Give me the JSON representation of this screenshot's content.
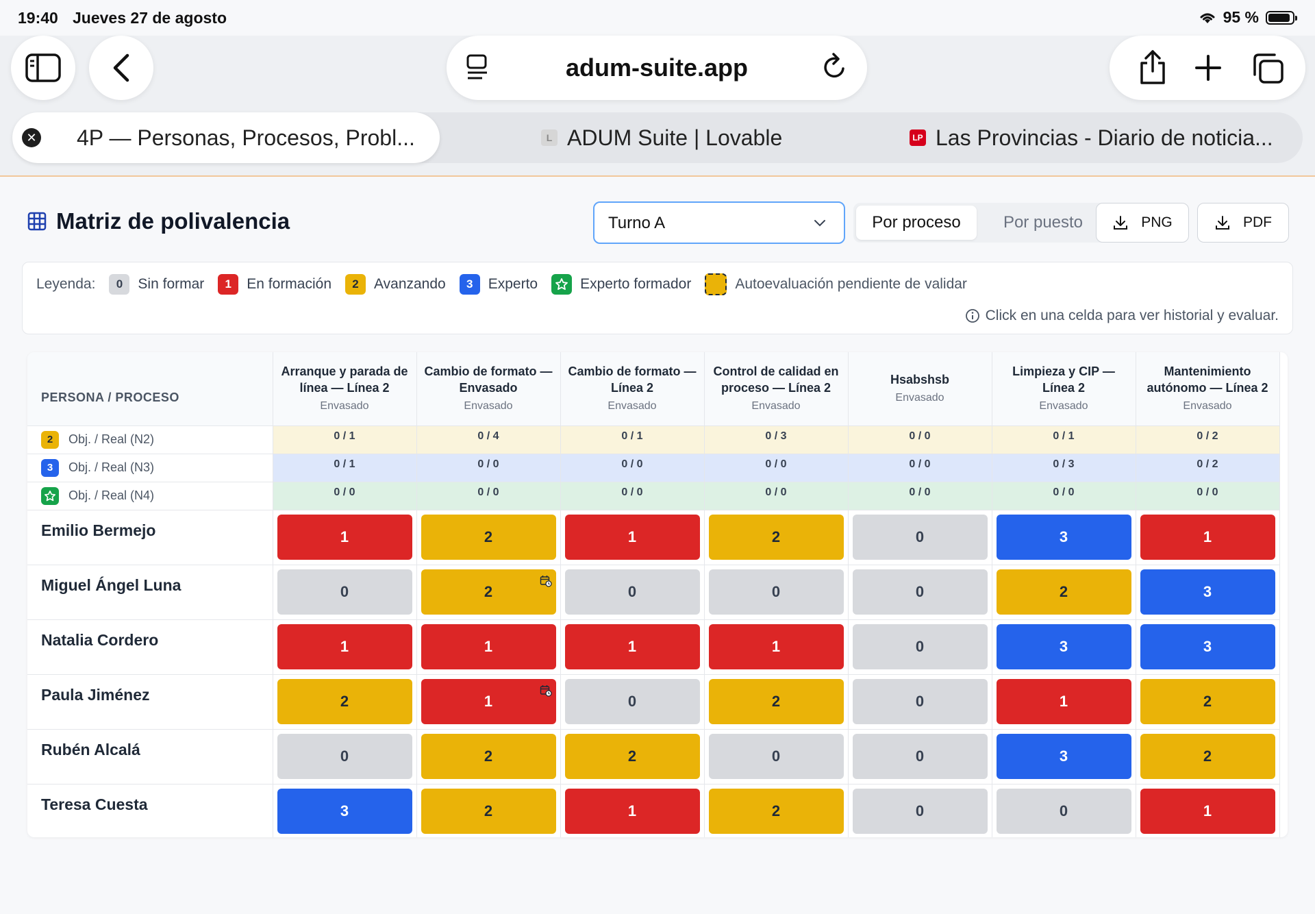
{
  "status_bar": {
    "time": "19:40",
    "date": "Jueves 27 de agosto",
    "battery": "95 %"
  },
  "browser": {
    "url": "adum-suite.app",
    "tabs": [
      {
        "title": "4P — Personas, Procesos, Probl...",
        "active": true
      },
      {
        "title": "ADUM Suite | Lovable",
        "active": false
      },
      {
        "title": "Las Provincias - Diario de noticia...",
        "active": false
      }
    ],
    "favicon_lp": "LP",
    "favicon_l": "L"
  },
  "page": {
    "title": "Matriz de polivalencia",
    "shift_select": "Turno A",
    "view_toggle": {
      "active": "Por proceso",
      "inactive": "Por puesto"
    },
    "export_png": "PNG",
    "export_pdf": "PDF"
  },
  "legend": {
    "label": "Leyenda:",
    "items": [
      {
        "badge": "0",
        "text": "Sin formar"
      },
      {
        "badge": "1",
        "text": "En formación"
      },
      {
        "badge": "2",
        "text": "Avanzando"
      },
      {
        "badge": "3",
        "text": "Experto"
      },
      {
        "badge": "star",
        "text": "Experto formador"
      }
    ],
    "pending": "Autoevaluación pendiente de validar",
    "hint": "Click en una celda para ver historial y evaluar."
  },
  "matrix": {
    "corner": "PERSONA / PROCESO",
    "processes": [
      {
        "name": "Arranque y parada de línea — Línea 2",
        "area": "Envasado"
      },
      {
        "name": "Cambio de formato — Envasado",
        "area": "Envasado"
      },
      {
        "name": "Cambio de formato — Línea 2",
        "area": "Envasado"
      },
      {
        "name": "Control de calidad en proceso — Línea 2",
        "area": "Envasado"
      },
      {
        "name": "Hsabshsb",
        "area": "Envasado"
      },
      {
        "name": "Limpieza y CIP — Línea 2",
        "area": "Envasado"
      },
      {
        "name": "Mantenimiento autónomo — Línea 2",
        "area": "Envasado"
      }
    ],
    "objective_rows": [
      {
        "badge": "2",
        "label": "Obj. / Real (N2)",
        "values": [
          "0 / 1",
          "0 / 4",
          "0 / 1",
          "0 / 3",
          "0 / 0",
          "0 / 1",
          "0 / 2"
        ]
      },
      {
        "badge": "3",
        "label": "Obj. / Real (N3)",
        "values": [
          "0 / 1",
          "0 / 0",
          "0 / 0",
          "0 / 0",
          "0 / 0",
          "0 / 3",
          "0 / 2"
        ]
      },
      {
        "badge": "star",
        "label": "Obj. / Real (N4)",
        "values": [
          "0 / 0",
          "0 / 0",
          "0 / 0",
          "0 / 0",
          "0 / 0",
          "0 / 0",
          "0 / 0"
        ]
      }
    ],
    "people": [
      {
        "name": "Emilio Bermejo",
        "levels": [
          "1",
          "2",
          "1",
          "2",
          "0",
          "3",
          "1"
        ],
        "pending": []
      },
      {
        "name": "Miguel Ángel Luna",
        "levels": [
          "0",
          "2",
          "0",
          "0",
          "0",
          "2",
          "3"
        ],
        "pending": [
          1
        ]
      },
      {
        "name": "Natalia Cordero",
        "levels": [
          "1",
          "1",
          "1",
          "1",
          "0",
          "3",
          "3"
        ],
        "pending": []
      },
      {
        "name": "Paula Jiménez",
        "levels": [
          "2",
          "1",
          "0",
          "2",
          "0",
          "1",
          "2"
        ],
        "pending": [
          1
        ]
      },
      {
        "name": "Rubén Alcalá",
        "levels": [
          "0",
          "2",
          "2",
          "0",
          "0",
          "3",
          "2"
        ],
        "pending": []
      },
      {
        "name": "Teresa Cuesta",
        "levels": [
          "3",
          "2",
          "1",
          "2",
          "0",
          "0",
          "1"
        ],
        "pending": []
      }
    ]
  },
  "colors": {
    "level0": "#d7d9dd",
    "level1": "#dc2626",
    "level2": "#eab308",
    "level3": "#2563eb",
    "level4": "#16a34a"
  }
}
